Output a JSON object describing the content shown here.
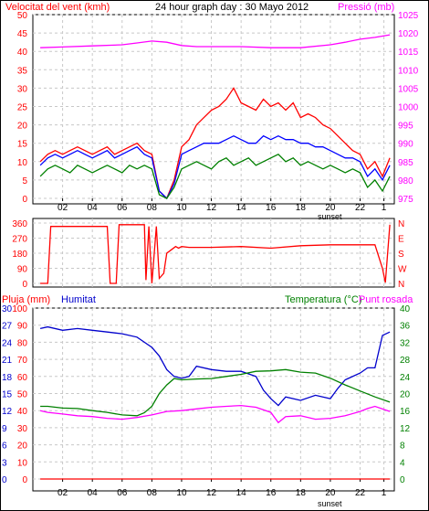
{
  "chart_data": [
    {
      "type": "line",
      "title": "24 hour graph day : 30 Mayo 2012",
      "ylabel_left": "Velocitat del vent (kmh)",
      "ylabel_right": "Pressió (mb)",
      "x_ticks": [
        "02",
        "04",
        "06",
        "08",
        "10",
        "12",
        "14",
        "16",
        "18",
        "20",
        "22",
        "1"
      ],
      "x_annotation": "sunset",
      "ylim_left": [
        0,
        50
      ],
      "y_ticks_left": [
        0,
        5,
        10,
        15,
        20,
        25,
        30,
        35,
        40,
        45,
        50
      ],
      "ylim_right": [
        975,
        1025
      ],
      "y_ticks_right": [
        975,
        980,
        985,
        990,
        995,
        1000,
        1005,
        1010,
        1015,
        1020,
        1025
      ],
      "grid": true,
      "series": [
        {
          "color": "#ff0000",
          "axis": "left",
          "x": [
            0.5,
            1,
            1.5,
            2,
            2.5,
            3,
            3.5,
            4,
            4.5,
            5,
            5.5,
            6,
            6.5,
            7,
            7.5,
            8,
            8.5,
            9,
            9.5,
            10,
            10.5,
            11,
            11.5,
            12,
            12.5,
            13,
            13.5,
            14,
            14.5,
            15,
            15.5,
            16,
            16.5,
            17,
            17.5,
            18,
            18.5,
            19,
            19.5,
            20,
            20.5,
            21,
            21.5,
            22,
            22.5,
            23,
            23.5,
            24
          ],
          "values": [
            10,
            12,
            13,
            12,
            13,
            14,
            13,
            12,
            13,
            14,
            12,
            13,
            14,
            15,
            13,
            12,
            2,
            0,
            5,
            14,
            16,
            20,
            22,
            24,
            25,
            27,
            30,
            26,
            25,
            24,
            27,
            25,
            26,
            24,
            26,
            22,
            23,
            22,
            20,
            19,
            17,
            15,
            13,
            12,
            8,
            10,
            6,
            11
          ]
        },
        {
          "color": "#0000ff",
          "axis": "left",
          "x": [
            0.5,
            1,
            1.5,
            2,
            2.5,
            3,
            3.5,
            4,
            4.5,
            5,
            5.5,
            6,
            6.5,
            7,
            7.5,
            8,
            8.5,
            9,
            9.5,
            10,
            10.5,
            11,
            11.5,
            12,
            12.5,
            13,
            13.5,
            14,
            14.5,
            15,
            15.5,
            16,
            16.5,
            17,
            17.5,
            18,
            18.5,
            19,
            19.5,
            20,
            20.5,
            21,
            21.5,
            22,
            22.5,
            23,
            23.5,
            24
          ],
          "values": [
            9,
            11,
            12,
            11,
            12,
            13,
            12,
            11,
            12,
            13,
            11,
            12,
            13,
            14,
            12,
            11,
            2,
            0,
            4,
            12,
            13,
            14,
            15,
            15,
            15,
            16,
            17,
            16,
            15,
            15,
            17,
            16,
            17,
            16,
            16,
            15,
            15,
            14,
            14,
            13,
            12,
            11,
            11,
            10,
            6,
            8,
            5,
            9
          ]
        },
        {
          "color": "#008000",
          "axis": "left",
          "x": [
            0.5,
            1,
            1.5,
            2,
            2.5,
            3,
            3.5,
            4,
            4.5,
            5,
            5.5,
            6,
            6.5,
            7,
            7.5,
            8,
            8.5,
            9,
            9.5,
            10,
            10.5,
            11,
            11.5,
            12,
            12.5,
            13,
            13.5,
            14,
            14.5,
            15,
            15.5,
            16,
            16.5,
            17,
            17.5,
            18,
            18.5,
            19,
            19.5,
            20,
            20.5,
            21,
            21.5,
            22,
            22.5,
            23,
            23.5,
            24
          ],
          "values": [
            6,
            8,
            9,
            8,
            7,
            9,
            8,
            7,
            8,
            9,
            8,
            7,
            9,
            8,
            9,
            8,
            1,
            0,
            3,
            8,
            9,
            10,
            9,
            8,
            10,
            11,
            9,
            10,
            11,
            9,
            10,
            11,
            12,
            10,
            11,
            9,
            10,
            9,
            8,
            9,
            8,
            7,
            8,
            7,
            3,
            5,
            2,
            6
          ]
        },
        {
          "color": "#ff00ff",
          "axis": "right",
          "x": [
            0.5,
            2,
            4,
            6,
            7,
            8,
            9,
            10,
            11,
            12,
            14,
            16,
            18,
            20,
            21,
            22,
            23,
            24
          ],
          "values": [
            1016,
            1016.2,
            1016.5,
            1016.8,
            1017.3,
            1017.8,
            1017.5,
            1016.6,
            1016.3,
            1016.3,
            1016.3,
            1016,
            1016,
            1016.8,
            1017.5,
            1018.3,
            1018.8,
            1019.5
          ]
        }
      ]
    },
    {
      "type": "line",
      "ylim_left": [
        0,
        360
      ],
      "y_ticks_left": [
        0,
        90,
        180,
        270,
        360
      ],
      "y_ticks_right": [
        "N",
        "W",
        "S",
        "E",
        "N"
      ],
      "x_ticks": [
        "02",
        "04",
        "06",
        "08",
        "10",
        "12",
        "14",
        "16",
        "18",
        "20",
        "22",
        "1"
      ],
      "series": [
        {
          "color": "#ff0000",
          "x": [
            0.5,
            1,
            1.2,
            5,
            5.2,
            5.6,
            5.8,
            7.5,
            7.6,
            7.8,
            8,
            8.3,
            8.5,
            8.8,
            9,
            9.3,
            9.6,
            9.8,
            10,
            10.5,
            12,
            14,
            16,
            18,
            20,
            22,
            23,
            23.5,
            23.7,
            24
          ],
          "values": [
            0,
            0,
            340,
            340,
            0,
            0,
            350,
            350,
            20,
            340,
            0,
            340,
            30,
            60,
            180,
            200,
            220,
            210,
            220,
            215,
            215,
            220,
            210,
            225,
            230,
            230,
            230,
            90,
            5,
            350
          ]
        }
      ]
    },
    {
      "type": "line",
      "ylabel_left": "Pluja (mm)",
      "ylabel_left2": "Humitat",
      "ylabel_right": "Temperatura (°C)",
      "ylabel_right2": "Punt rosada",
      "ylim_humidity": [
        0,
        100
      ],
      "y_ticks_humidity": [
        0,
        10,
        20,
        30,
        40,
        50,
        60,
        70,
        80,
        90,
        100
      ],
      "ylim_rain": [
        0,
        30
      ],
      "y_ticks_rain": [
        0,
        3,
        6,
        9,
        12,
        15,
        18,
        21,
        24,
        27,
        30
      ],
      "ylim_temp": [
        0,
        40
      ],
      "y_ticks_temp": [
        0,
        4,
        8,
        12,
        16,
        20,
        24,
        28,
        32,
        36,
        40
      ],
      "x_ticks": [
        "02",
        "04",
        "06",
        "08",
        "10",
        "12",
        "14",
        "16",
        "18",
        "20",
        "22",
        "1"
      ],
      "x_annotation": "sunset",
      "series": [
        {
          "color": "#0000cc",
          "axis": "humidity",
          "x": [
            0.5,
            1,
            2,
            3,
            4,
            5,
            6,
            7,
            7.5,
            8,
            8.5,
            9,
            9.5,
            10,
            10.5,
            11,
            12,
            13,
            14,
            15,
            15.5,
            16,
            16.5,
            17,
            18,
            19,
            20,
            20.5,
            21,
            22,
            22.5,
            23,
            23.5,
            24
          ],
          "values": [
            88,
            89,
            87,
            88,
            87,
            86,
            85,
            83,
            80,
            77,
            72,
            64,
            60,
            59,
            60,
            66,
            64,
            63,
            63,
            60,
            52,
            47,
            43,
            48,
            46,
            49,
            47,
            53,
            58,
            62,
            65,
            65,
            84,
            86
          ]
        },
        {
          "color": "#008000",
          "axis": "temp",
          "x": [
            0.5,
            1,
            2,
            3,
            4,
            5,
            6,
            7,
            7.5,
            8,
            8.5,
            9,
            9.5,
            10,
            11,
            12,
            13,
            14,
            15,
            16,
            17,
            18,
            19,
            20,
            21,
            22,
            23,
            24
          ],
          "values": [
            17,
            17,
            16.6,
            16.5,
            16,
            15.6,
            15,
            14.8,
            15.5,
            17,
            20,
            22,
            23.5,
            23.2,
            23.4,
            23.5,
            24,
            24.5,
            25.2,
            25.3,
            25.6,
            25,
            24.8,
            23.6,
            22,
            20.6,
            19.2,
            18
          ]
        },
        {
          "color": "#ff00ff",
          "axis": "temp",
          "x": [
            0.5,
            1,
            2,
            3,
            4,
            5,
            6,
            7,
            8,
            9,
            10,
            11,
            12,
            13,
            14,
            15,
            16,
            16.5,
            17,
            18,
            19,
            20,
            21,
            22,
            22.5,
            23,
            24
          ],
          "values": [
            16,
            15.6,
            15.2,
            14.8,
            14.6,
            14.2,
            14,
            14.4,
            15,
            15.8,
            16,
            16.4,
            16.8,
            17,
            17.2,
            16.8,
            15.6,
            13.2,
            14.6,
            14.8,
            14,
            14.2,
            14.8,
            15.8,
            16.5,
            17,
            15.8
          ]
        },
        {
          "color": "#ff0000",
          "axis": "rain",
          "x": [
            0.5,
            24
          ],
          "values": [
            0,
            0
          ]
        }
      ]
    }
  ]
}
